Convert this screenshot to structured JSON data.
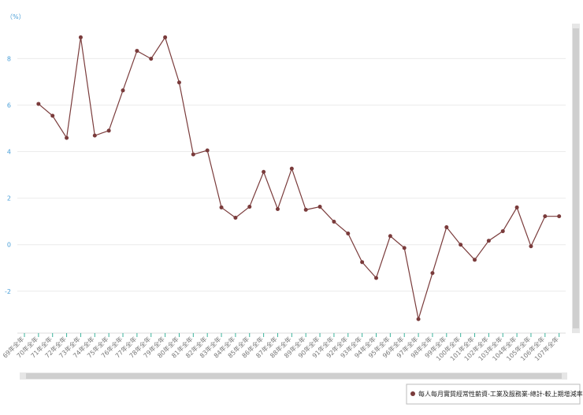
{
  "chart_data": {
    "type": "line",
    "y_unit": "（%）",
    "categories": [
      "69年全年",
      "70年全年",
      "71年全年",
      "72年全年",
      "73年全年",
      "74年全年",
      "75年全年",
      "76年全年",
      "77年全年",
      "78年全年",
      "79年全年",
      "80年全年",
      "81年全年",
      "82年全年",
      "83年全年",
      "84年全年",
      "85年全年",
      "86年全年",
      "87年全年",
      "88年全年",
      "89年全年",
      "90年全年",
      "91年全年",
      "92年全年",
      "93年全年",
      "94年全年",
      "95年全年",
      "96年全年",
      "97年全年",
      "98年全年",
      "99年全年",
      "100年全年",
      "101年全年",
      "102年全年",
      "103年全年",
      "104年全年",
      "105年全年",
      "106年全年",
      "107年全年"
    ],
    "series": [
      {
        "name": "每人每月實質經常性薪資-工業及服務業-總計-較上期增減率",
        "color": "#7a3b3b",
        "values": [
          null,
          6.05,
          5.54,
          4.59,
          8.91,
          4.69,
          4.9,
          6.63,
          8.33,
          7.99,
          8.91,
          6.97,
          3.88,
          4.05,
          1.6,
          1.16,
          1.63,
          3.13,
          1.53,
          3.27,
          1.5,
          1.63,
          0.99,
          0.48,
          -0.75,
          -1.43,
          0.37,
          -0.14,
          -3.2,
          -1.22,
          0.75,
          0,
          -0.65,
          0.17,
          0.58,
          1.6,
          -0.07,
          1.22,
          1.22
        ]
      }
    ],
    "ylim": [
      -3.8,
      9.5
    ],
    "yticks": [
      -2,
      0,
      2,
      4,
      6,
      8
    ],
    "grid": true
  }
}
